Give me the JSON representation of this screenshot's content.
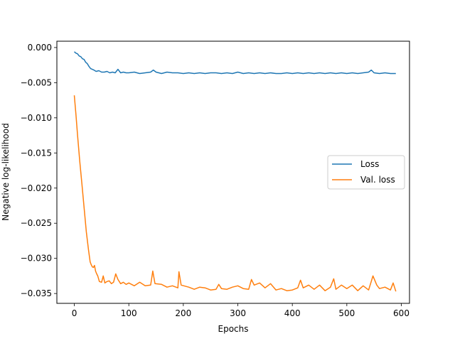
{
  "chart_data": {
    "type": "line",
    "title": "",
    "xlabel": "Epochs",
    "ylabel": "Negative log-likelihood",
    "xlim": [
      -32,
      615
    ],
    "ylim": [
      -0.0364,
      0.0009
    ],
    "xticks": [
      0,
      100,
      200,
      300,
      400,
      500,
      600
    ],
    "xtick_labels": [
      "0",
      "100",
      "200",
      "300",
      "400",
      "500",
      "600"
    ],
    "yticks": [
      0.0,
      -0.005,
      -0.01,
      -0.015,
      -0.02,
      -0.025,
      -0.03,
      -0.035
    ],
    "ytick_labels": [
      "0.000",
      "−0.005",
      "−0.010",
      "−0.015",
      "−0.020",
      "−0.025",
      "−0.030",
      "−0.035"
    ],
    "grid": false,
    "legend_position": "center-right",
    "series": [
      {
        "name": "Loss",
        "color": "#1f77b4",
        "x": [
          0,
          3,
          6,
          9,
          12,
          15,
          18,
          21,
          24,
          27,
          30,
          33,
          36,
          40,
          45,
          50,
          55,
          60,
          65,
          70,
          75,
          80,
          85,
          90,
          95,
          100,
          110,
          120,
          130,
          140,
          145,
          150,
          160,
          170,
          180,
          190,
          200,
          210,
          220,
          230,
          240,
          250,
          260,
          270,
          280,
          290,
          300,
          310,
          320,
          330,
          340,
          350,
          360,
          370,
          380,
          390,
          400,
          410,
          420,
          430,
          440,
          450,
          460,
          470,
          480,
          490,
          500,
          510,
          520,
          530,
          540,
          545,
          550,
          560,
          570,
          580,
          590
        ],
        "y": [
          -0.0006,
          -0.0008,
          -0.0009,
          -0.0012,
          -0.0013,
          -0.0016,
          -0.0017,
          -0.0021,
          -0.0023,
          -0.0027,
          -0.003,
          -0.0031,
          -0.0032,
          -0.0034,
          -0.0033,
          -0.0035,
          -0.0035,
          -0.0034,
          -0.0036,
          -0.0035,
          -0.0036,
          -0.0031,
          -0.0036,
          -0.0035,
          -0.0036,
          -0.0036,
          -0.0035,
          -0.0037,
          -0.0036,
          -0.0035,
          -0.0032,
          -0.0035,
          -0.0037,
          -0.0035,
          -0.0036,
          -0.0036,
          -0.0037,
          -0.0036,
          -0.0037,
          -0.0036,
          -0.0037,
          -0.0036,
          -0.0036,
          -0.0037,
          -0.0036,
          -0.0037,
          -0.0035,
          -0.0037,
          -0.0036,
          -0.0037,
          -0.0036,
          -0.0037,
          -0.0036,
          -0.0037,
          -0.0037,
          -0.0036,
          -0.0037,
          -0.0036,
          -0.0037,
          -0.0036,
          -0.0037,
          -0.0036,
          -0.0037,
          -0.0036,
          -0.0037,
          -0.0036,
          -0.0037,
          -0.0036,
          -0.0037,
          -0.0036,
          -0.0035,
          -0.0032,
          -0.0036,
          -0.0037,
          -0.0036,
          -0.0037,
          -0.0037
        ]
      },
      {
        "name": "Val. loss",
        "color": "#ff7f0e",
        "x": [
          0,
          3,
          6,
          10,
          14,
          18,
          22,
          26,
          29,
          31,
          33,
          35,
          37,
          39,
          41,
          43,
          46,
          50,
          53,
          56,
          60,
          64,
          68,
          72,
          76,
          80,
          85,
          90,
          95,
          100,
          110,
          120,
          130,
          140,
          144,
          148,
          160,
          170,
          180,
          190,
          192,
          196,
          210,
          220,
          230,
          240,
          250,
          260,
          265,
          270,
          280,
          290,
          300,
          310,
          320,
          325,
          330,
          340,
          350,
          360,
          370,
          380,
          390,
          400,
          410,
          415,
          420,
          430,
          440,
          450,
          460,
          470,
          476,
          480,
          490,
          500,
          510,
          520,
          530,
          540,
          548,
          555,
          560,
          570,
          580,
          585,
          590
        ],
        "y": [
          -0.0068,
          -0.0095,
          -0.0125,
          -0.0162,
          -0.0195,
          -0.0228,
          -0.0262,
          -0.0288,
          -0.0305,
          -0.0309,
          -0.0312,
          -0.0313,
          -0.031,
          -0.0318,
          -0.0322,
          -0.0325,
          -0.0333,
          -0.0334,
          -0.0325,
          -0.0335,
          -0.0333,
          -0.0332,
          -0.0336,
          -0.0334,
          -0.0322,
          -0.033,
          -0.0336,
          -0.0334,
          -0.0337,
          -0.0335,
          -0.0339,
          -0.0334,
          -0.0339,
          -0.0338,
          -0.0318,
          -0.0336,
          -0.0337,
          -0.0341,
          -0.0339,
          -0.0342,
          -0.0319,
          -0.0338,
          -0.0341,
          -0.0344,
          -0.0341,
          -0.0342,
          -0.0345,
          -0.0344,
          -0.0337,
          -0.0343,
          -0.0344,
          -0.0341,
          -0.0339,
          -0.0343,
          -0.0344,
          -0.033,
          -0.0338,
          -0.0335,
          -0.0342,
          -0.0336,
          -0.0345,
          -0.0343,
          -0.0346,
          -0.0345,
          -0.0342,
          -0.0331,
          -0.0342,
          -0.0338,
          -0.0344,
          -0.0338,
          -0.0346,
          -0.0341,
          -0.0329,
          -0.0344,
          -0.0338,
          -0.0343,
          -0.0338,
          -0.0346,
          -0.0339,
          -0.0345,
          -0.0325,
          -0.0338,
          -0.0343,
          -0.0341,
          -0.0345,
          -0.0335,
          -0.0347
        ]
      }
    ]
  }
}
